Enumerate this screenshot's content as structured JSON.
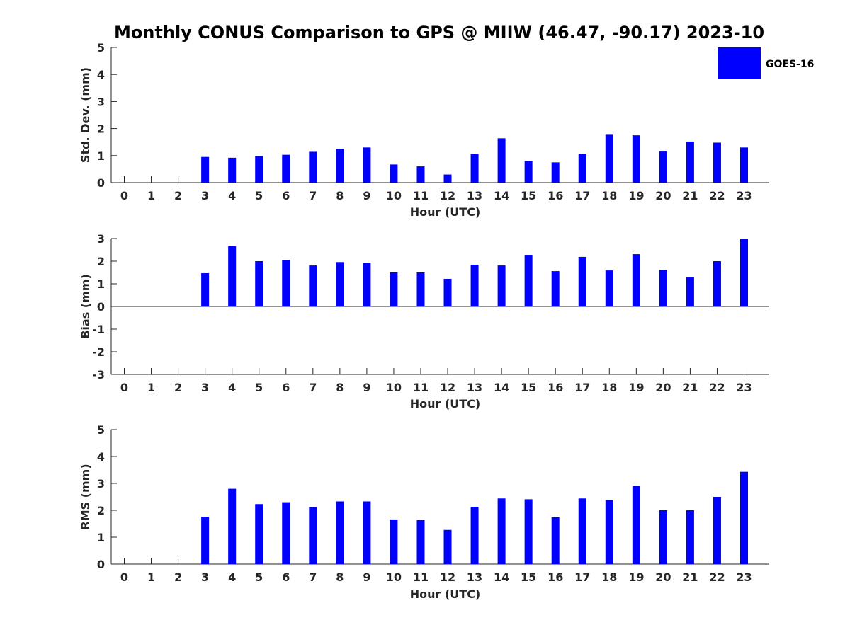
{
  "title": "Monthly CONUS Comparison to GPS @ MIIW (46.47, -90.17) 2023-10",
  "legend": {
    "label": "GOES-16",
    "color": "#0000ff"
  },
  "chart_data": [
    {
      "type": "bar",
      "title": "Monthly CONUS Comparison to GPS @ MIIW (46.47, -90.17) 2023-10",
      "xlabel": "Hour (UTC)",
      "ylabel": "Std. Dev. (mm)",
      "categories": [
        "0",
        "1",
        "2",
        "3",
        "4",
        "5",
        "6",
        "7",
        "8",
        "9",
        "10",
        "11",
        "12",
        "13",
        "14",
        "15",
        "16",
        "17",
        "18",
        "19",
        "20",
        "21",
        "22",
        "23"
      ],
      "ylim": [
        0,
        5
      ],
      "yticks": [
        "0",
        "1",
        "2",
        "3",
        "4",
        "5"
      ],
      "series": [
        {
          "name": "GOES-16",
          "color": "#0000ff",
          "values": [
            null,
            null,
            null,
            0.95,
            0.92,
            0.98,
            1.03,
            1.14,
            1.25,
            1.3,
            0.67,
            0.6,
            0.3,
            1.06,
            1.64,
            0.8,
            0.75,
            1.07,
            1.77,
            1.75,
            1.15,
            1.52,
            1.48,
            1.3
          ]
        }
      ],
      "grid": false,
      "legend_position": "top-right"
    },
    {
      "type": "bar",
      "xlabel": "Hour (UTC)",
      "ylabel": "Bias (mm)",
      "categories": [
        "0",
        "1",
        "2",
        "3",
        "4",
        "5",
        "6",
        "7",
        "8",
        "9",
        "10",
        "11",
        "12",
        "13",
        "14",
        "15",
        "16",
        "17",
        "18",
        "19",
        "20",
        "21",
        "22",
        "23"
      ],
      "ylim": [
        -3,
        3
      ],
      "yticks": [
        "-3",
        "-2",
        "-1",
        "0",
        "1",
        "2",
        "3"
      ],
      "series": [
        {
          "name": "GOES-16",
          "color": "#0000ff",
          "values": [
            null,
            null,
            null,
            1.47,
            2.66,
            2.0,
            2.06,
            1.81,
            1.96,
            1.93,
            1.5,
            1.5,
            1.22,
            1.84,
            1.81,
            2.28,
            1.56,
            2.19,
            1.59,
            2.31,
            1.62,
            1.28,
            2.0,
            3.0
          ]
        }
      ],
      "grid": false
    },
    {
      "type": "bar",
      "xlabel": "Hour (UTC)",
      "ylabel": "RMS (mm)",
      "categories": [
        "0",
        "1",
        "2",
        "3",
        "4",
        "5",
        "6",
        "7",
        "8",
        "9",
        "10",
        "11",
        "12",
        "13",
        "14",
        "15",
        "16",
        "17",
        "18",
        "19",
        "20",
        "21",
        "22",
        "23"
      ],
      "ylim": [
        0,
        5
      ],
      "yticks": [
        "0",
        "1",
        "2",
        "3",
        "4",
        "5"
      ],
      "series": [
        {
          "name": "GOES-16",
          "color": "#0000ff",
          "values": [
            null,
            null,
            null,
            1.76,
            2.8,
            2.23,
            2.3,
            2.12,
            2.33,
            2.33,
            1.66,
            1.64,
            1.27,
            2.13,
            2.44,
            2.41,
            1.74,
            2.44,
            2.38,
            2.91,
            2.0,
            2.0,
            2.5,
            3.43
          ]
        }
      ],
      "grid": false
    }
  ]
}
